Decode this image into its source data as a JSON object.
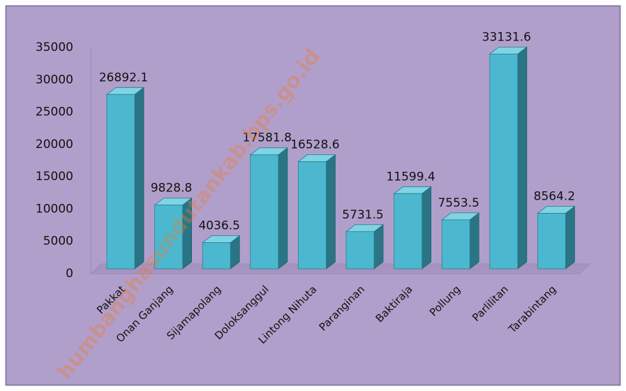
{
  "chart_data": {
    "type": "bar3d",
    "categories": [
      "Pakkat",
      "Onan Ganjang",
      "Sijamapolang",
      "Doloksanggul",
      "Lintong Nihuta",
      "Paranginan",
      "Baktiraja",
      "Pollung",
      "Parlilitan",
      "Tarabintang"
    ],
    "values": [
      26892.1,
      9828.8,
      4036.5,
      17581.8,
      16528.6,
      5731.5,
      11599.4,
      7553.5,
      33131.6,
      8564.2
    ],
    "color": "#4bb8d0",
    "ylim": [
      0,
      35000
    ],
    "yticks": [
      0,
      5000,
      10000,
      15000,
      20000,
      25000,
      30000,
      35000
    ],
    "watermark": "humbanghasundutankab.bps.go.id"
  }
}
